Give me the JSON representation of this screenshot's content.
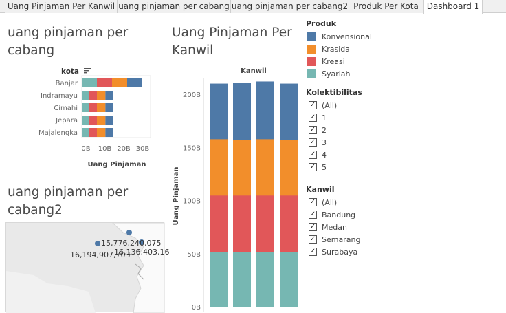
{
  "tabs": [
    {
      "label": "Uang Pinjaman Per Kanwil"
    },
    {
      "label": "uang pinjaman per cabang"
    },
    {
      "label": "uang pinjaman per cabang2"
    },
    {
      "label": "Produk Per Kota"
    },
    {
      "label": "Dashboard 1"
    }
  ],
  "panel_cabang": {
    "title_line1": "uang pinjaman per",
    "title_line2": "cabang",
    "dimension_label": "kota",
    "sort_icon": "sort-descending-icon",
    "xlabel": "Uang Pinjaman"
  },
  "panel_cabang2": {
    "title_line1": "uang pinjaman per",
    "title_line2": "cabang2",
    "map_labels": [
      "15,776,240,075",
      "16,194,907,703",
      "16,136,403,16"
    ]
  },
  "panel_kanwil": {
    "title_line1": "Uang Pinjaman Per",
    "title_line2": "Kanwil",
    "column_header": "Kanwil",
    "ylabel": "Uang Pinjaman"
  },
  "legend": {
    "title": "Produk",
    "items": [
      {
        "label": "Konvensional",
        "color": "#4e79a7"
      },
      {
        "label": "Krasida",
        "color": "#f28e2b"
      },
      {
        "label": "Kreasi",
        "color": "#e15759"
      },
      {
        "label": "Syariah",
        "color": "#76b7b2"
      }
    ]
  },
  "filter_kolektibilitas": {
    "title": "Kolektibilitas",
    "options": [
      "(All)",
      "1",
      "2",
      "3",
      "4",
      "5"
    ]
  },
  "filter_kanwil": {
    "title": "Kanwil",
    "options": [
      "(All)",
      "Bandung",
      "Medan",
      "Semarang",
      "Surabaya"
    ]
  },
  "chart_data": [
    {
      "type": "bar",
      "orientation": "horizontal",
      "stacked": true,
      "categories": [
        "Banjar",
        "Indramayu",
        "Cimahi",
        "Jepara",
        "Majalengka"
      ],
      "series": [
        {
          "name": "Syariah",
          "values": [
            8,
            4,
            4,
            4,
            4
          ]
        },
        {
          "name": "Kreasi",
          "values": [
            8,
            4,
            4,
            4,
            4
          ]
        },
        {
          "name": "Krasida",
          "values": [
            8,
            4.5,
            4.5,
            4.5,
            4.5
          ]
        },
        {
          "name": "Konvensional",
          "values": [
            8,
            4,
            4,
            4,
            4
          ]
        }
      ],
      "x_ticks": [
        "0B",
        "10B",
        "20B",
        "30B"
      ],
      "xlabel": "Uang Pinjaman",
      "ylabel": "kota",
      "xlim": [
        0,
        33
      ]
    },
    {
      "type": "bar",
      "stacked": true,
      "column_header": "Kanwil",
      "categories": [
        "",
        "",
        "",
        ""
      ],
      "series": [
        {
          "name": "Syariah",
          "values": [
            52,
            52,
            52,
            52
          ]
        },
        {
          "name": "Kreasi",
          "values": [
            53,
            53,
            53,
            53
          ]
        },
        {
          "name": "Krasida",
          "values": [
            53,
            52,
            53,
            52
          ]
        },
        {
          "name": "Konvensional",
          "values": [
            52,
            54,
            54,
            53
          ]
        }
      ],
      "y_ticks": [
        "0B",
        "50B",
        "100B",
        "150B",
        "200B"
      ],
      "ylabel": "Uang Pinjaman",
      "ylim": [
        0,
        220
      ]
    }
  ]
}
